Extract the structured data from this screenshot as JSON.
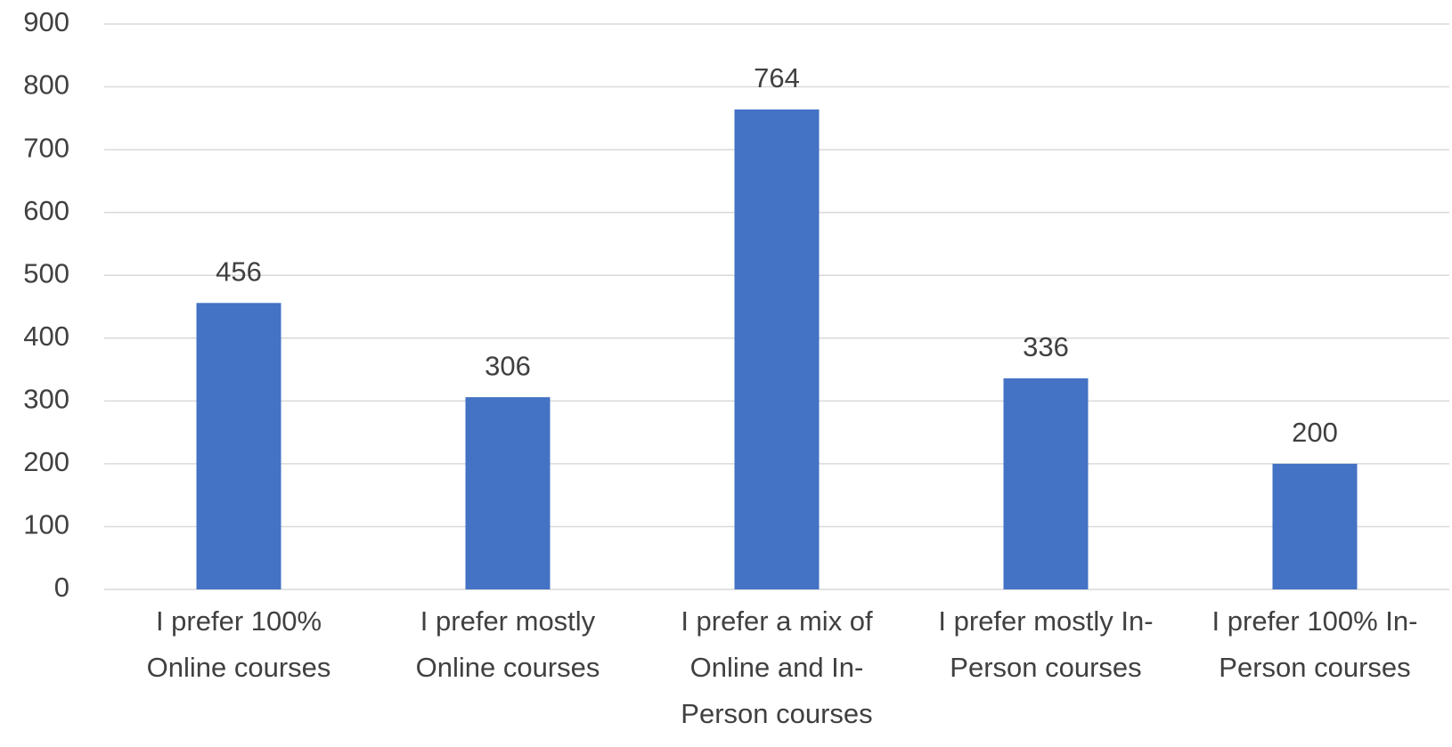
{
  "chart_data": {
    "type": "bar",
    "categories": [
      "I prefer 100% Online courses",
      "I prefer mostly Online courses",
      "I prefer a mix of Online and In-Person courses",
      "I prefer mostly In-Person courses",
      "I prefer 100% In-Person courses"
    ],
    "values": [
      456,
      306,
      764,
      336,
      200
    ],
    "color": "#4472c4",
    "ylim": [
      0,
      900
    ],
    "yticks": [
      0,
      100,
      200,
      300,
      400,
      500,
      600,
      700,
      800,
      900
    ],
    "grid": true
  }
}
